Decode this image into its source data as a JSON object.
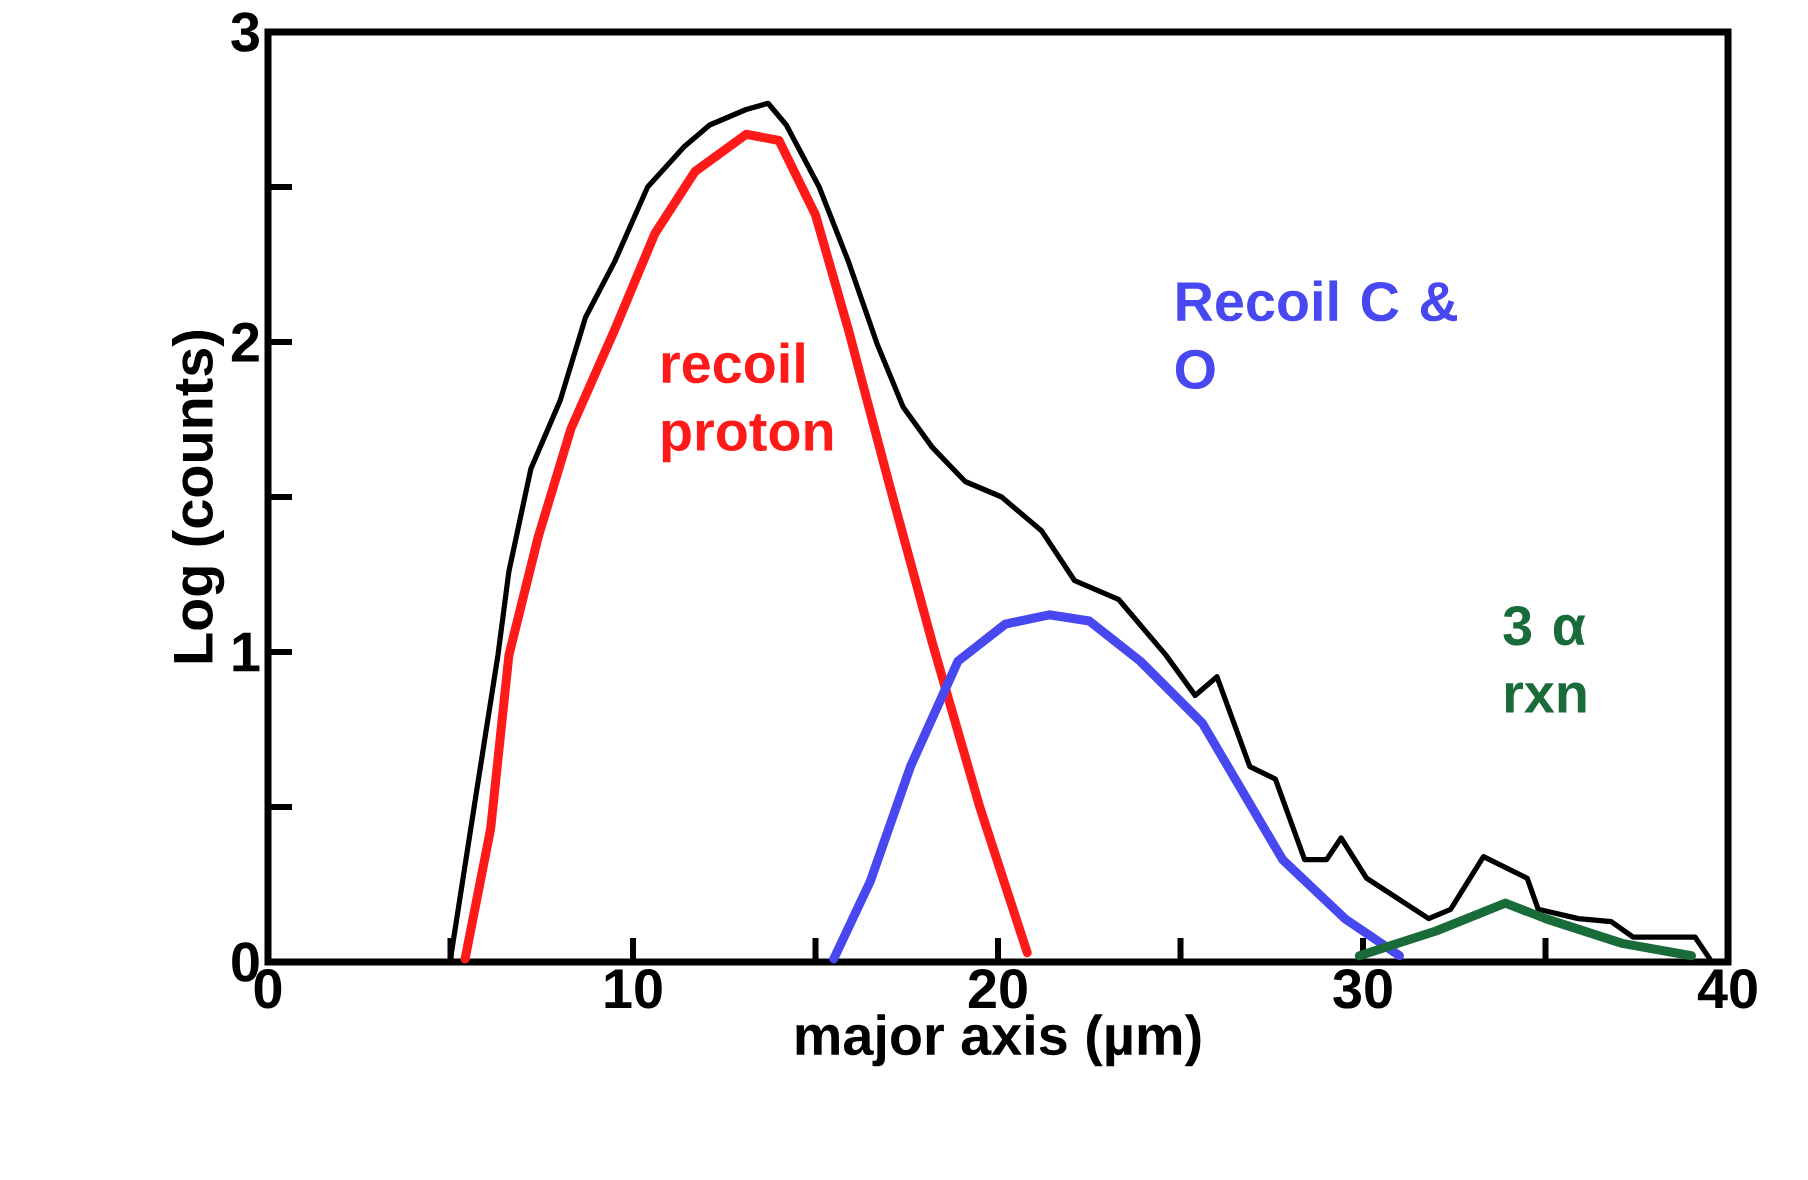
{
  "chart_data": {
    "type": "line",
    "xlabel": "major axis (µm)",
    "ylabel": "Log (counts)",
    "xlim": [
      0,
      40
    ],
    "ylim": [
      0,
      3
    ],
    "xticks": [
      0,
      {
        "value": 5,
        "label": null
      },
      10,
      {
        "value": 15,
        "label": null
      },
      20,
      {
        "value": 25,
        "label": null
      },
      30,
      {
        "value": 35,
        "label": null
      },
      40
    ],
    "yticks": [
      0,
      {
        "value": 0.5,
        "label": null
      },
      1,
      {
        "value": 1.5,
        "label": null
      },
      2,
      {
        "value": 2.5,
        "label": null
      },
      3
    ],
    "grid": false,
    "legend": false,
    "marker": "none",
    "line_style": "solid",
    "series": [
      {
        "color": "#000000",
        "x": [
          5.0,
          5.7,
          6.3,
          6.6,
          7.2,
          8.0,
          8.7,
          9.5,
          10.4,
          11.4,
          12.1,
          13.1,
          13.7,
          14.2,
          15.1,
          15.9,
          16.7,
          17.4,
          18.2,
          19.1,
          20.1,
          21.2,
          22.1,
          23.3,
          24.6,
          25.4,
          26.0,
          26.9,
          27.6,
          28.4,
          29.0,
          29.4,
          30.1,
          31.8,
          32.4,
          33.3,
          34.5,
          34.8,
          35.9,
          36.8,
          37.4,
          39.1,
          39.5
        ],
        "values": [
          0.01,
          0.54,
          0.99,
          1.26,
          1.59,
          1.81,
          2.08,
          2.26,
          2.5,
          2.63,
          2.7,
          2.75,
          2.77,
          2.7,
          2.5,
          2.26,
          1.99,
          1.79,
          1.66,
          1.55,
          1.5,
          1.39,
          1.23,
          1.17,
          0.99,
          0.86,
          0.92,
          0.63,
          0.59,
          0.33,
          0.33,
          0.4,
          0.27,
          0.14,
          0.17,
          0.34,
          0.27,
          0.17,
          0.14,
          0.13,
          0.08,
          0.08,
          0.01
        ]
      },
      {
        "name": "recoil proton",
        "color": "#ff1a1a",
        "x": [
          5.4,
          6.1,
          6.6,
          7.4,
          8.3,
          9.5,
          10.6,
          11.7,
          13.1,
          14.0,
          15.0,
          15.9,
          17.0,
          18.2,
          19.5,
          20.8
        ],
        "values": [
          0.01,
          0.43,
          0.99,
          1.37,
          1.72,
          2.04,
          2.35,
          2.55,
          2.67,
          2.65,
          2.41,
          2.04,
          1.55,
          1.03,
          0.5,
          0.03
        ]
      },
      {
        "name": "Recoil C & O",
        "color": "#4848f0",
        "x": [
          15.5,
          16.5,
          17.6,
          18.9,
          20.2,
          21.4,
          22.5,
          23.9,
          25.6,
          27.8,
          29.5,
          31.0
        ],
        "values": [
          0.01,
          0.26,
          0.63,
          0.97,
          1.09,
          1.12,
          1.1,
          0.97,
          0.77,
          0.33,
          0.14,
          0.02
        ]
      },
      {
        "name": "3 α rxn",
        "color": "#1a6b3a",
        "x": [
          29.9,
          32.0,
          33.9,
          35.0,
          37.1,
          39.0
        ],
        "values": [
          0.02,
          0.1,
          0.19,
          0.14,
          0.06,
          0.02
        ]
      }
    ]
  }
}
